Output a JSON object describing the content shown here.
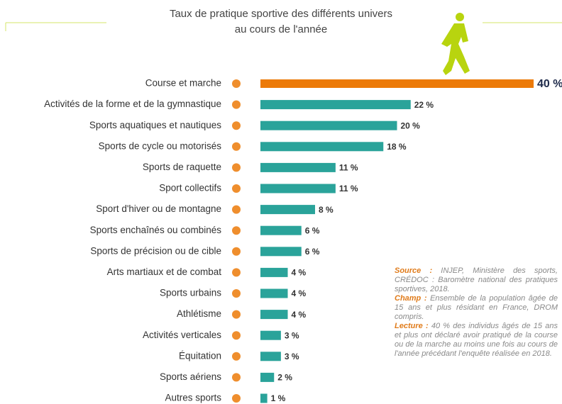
{
  "chart_data": {
    "type": "bar",
    "orientation": "horizontal",
    "title": [
      "Taux de pratique sportive des différents univers",
      "au cours de l'année"
    ],
    "categories": [
      "Course et marche",
      "Activités  de la forme et de la gymnastique",
      "Sports aquatiques et nautiques",
      "Sports de cycle ou motorisés",
      "Sports de raquette",
      "Sport collectifs",
      "Sport d'hiver ou de montagne",
      "Sports enchaînés ou combinés",
      "Sports de précision ou de cible",
      "Arts martiaux et de combat",
      "Sports urbains",
      "Athlétisme",
      "Activités verticales",
      "Équitation",
      "Sports aériens",
      "Autres sports"
    ],
    "values": [
      40,
      22,
      20,
      18,
      11,
      11,
      8,
      6,
      6,
      4,
      4,
      4,
      3,
      3,
      2,
      1
    ],
    "value_labels": [
      "40 %",
      "22 %",
      "20 %",
      "18 %",
      "11 %",
      "11 %",
      "8 %",
      "6 %",
      "6 %",
      "4 %",
      "4 %",
      "4 %",
      "3 %",
      "3 %",
      "2 %",
      "1 %"
    ],
    "colors": [
      "#ec7a08",
      "#2aa39a",
      "#2aa39a",
      "#2aa39a",
      "#2aa39a",
      "#2aa39a",
      "#2aa39a",
      "#2aa39a",
      "#2aa39a",
      "#2aa39a",
      "#2aa39a",
      "#2aa39a",
      "#2aa39a",
      "#2aa39a",
      "#2aa39a",
      "#2aa39a"
    ],
    "xlim": [
      0,
      40
    ],
    "notes": [
      {
        "label": "Source :",
        "text": "INJEP, Ministère des sports, CRÉDOC : Baromètre national des pratiques sportives, 2018."
      },
      {
        "label": "Champ :",
        "text": "Ensemble de la population âgée de 15 ans et plus résidant en France, DROM compris."
      },
      {
        "label": "Lecture :",
        "text": "40 % des individus âgés de 15 ans et plus ont déclaré avoir pratiqué de la course ou de la marche au moins une fois au cours de l'année précédant l'enquête réalisée en 2018."
      }
    ]
  }
}
